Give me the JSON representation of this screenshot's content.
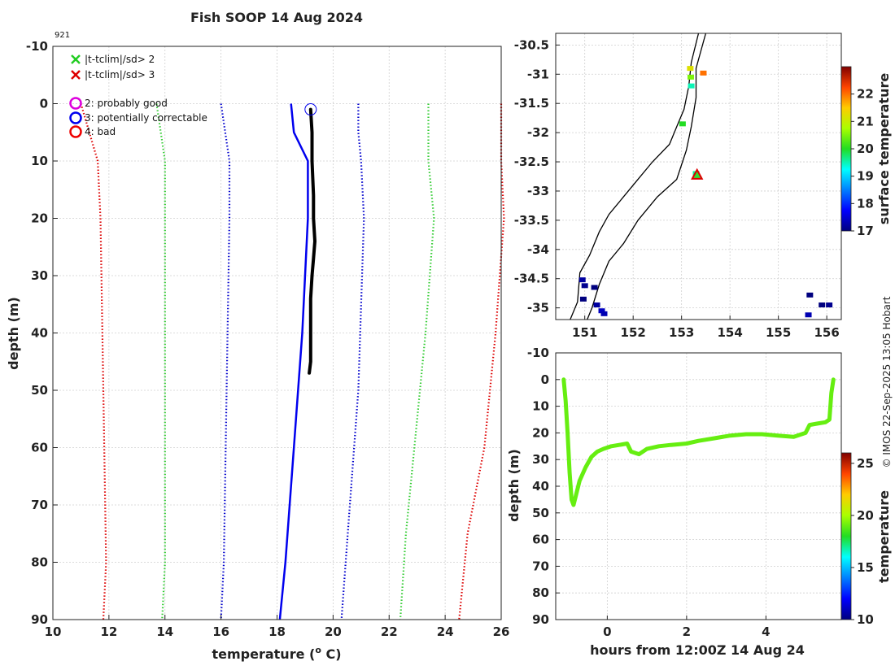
{
  "chart_data": [
    {
      "type": "line",
      "title": "Fish SOOP 14 Aug 2024",
      "profile_id": "921",
      "xlabel": "temperature (",
      "xlabel_sup": "o",
      "xlabel_tail": " C)",
      "ylabel": "depth (m)",
      "xlim": [
        10,
        26
      ],
      "ylim": [
        90,
        -10
      ],
      "xticks": [
        10,
        12,
        14,
        16,
        18,
        20,
        22,
        24,
        26
      ],
      "yticks": [
        -10,
        0,
        10,
        20,
        30,
        40,
        50,
        60,
        70,
        80,
        90
      ],
      "legend": [
        {
          "marker": "x",
          "color": "#22cc22",
          "label": "|t-tclim|/sd> 2"
        },
        {
          "marker": "x",
          "color": "#dd0000",
          "label": "|t-tclim|/sd> 3"
        },
        {
          "marker": "o",
          "color": "#dd00dd",
          "label": "2: probably good"
        },
        {
          "marker": "o",
          "color": "#0000ee",
          "label": "3: potentially correctable"
        },
        {
          "marker": "o",
          "color": "#ee0000",
          "label": "4: bad"
        }
      ],
      "legend_position": "top-left",
      "series": [
        {
          "style": "dotted",
          "color": "#dd0000",
          "points": [
            [
              11.0,
              0
            ],
            [
              11.6,
              10
            ],
            [
              11.7,
              20
            ],
            [
              11.8,
              50
            ],
            [
              11.9,
              80
            ],
            [
              11.8,
              90
            ]
          ]
        },
        {
          "style": "dotted",
          "color": "#33cc33",
          "points": [
            [
              13.7,
              0
            ],
            [
              14.0,
              10
            ],
            [
              14.0,
              20
            ],
            [
              14.0,
              50
            ],
            [
              14.0,
              80
            ],
            [
              13.9,
              90
            ]
          ]
        },
        {
          "style": "dotted",
          "color": "#0000cc",
          "points": [
            [
              16.0,
              0
            ],
            [
              16.3,
              10
            ],
            [
              16.3,
              20
            ],
            [
              16.2,
              50
            ],
            [
              16.1,
              80
            ],
            [
              16.0,
              90
            ]
          ]
        },
        {
          "style": "solid",
          "color": "#0000ee",
          "points": [
            [
              18.5,
              0
            ],
            [
              18.6,
              5
            ],
            [
              19.1,
              10
            ],
            [
              19.1,
              20
            ],
            [
              18.9,
              40
            ],
            [
              18.6,
              60
            ],
            [
              18.3,
              80
            ],
            [
              18.1,
              90
            ]
          ]
        },
        {
          "style": "dotted",
          "color": "#0000cc",
          "points": [
            [
              20.9,
              0
            ],
            [
              20.9,
              5
            ],
            [
              21.0,
              10
            ],
            [
              21.1,
              20
            ],
            [
              20.9,
              50
            ],
            [
              20.6,
              70
            ],
            [
              20.3,
              90
            ]
          ]
        },
        {
          "style": "dotted",
          "color": "#33cc33",
          "points": [
            [
              23.4,
              0
            ],
            [
              23.4,
              10
            ],
            [
              23.6,
              20
            ],
            [
              23.3,
              40
            ],
            [
              23.0,
              55
            ],
            [
              22.6,
              75
            ],
            [
              22.4,
              90
            ]
          ]
        },
        {
          "style": "dotted",
          "color": "#dd0000",
          "points": [
            [
              26.0,
              0
            ],
            [
              26.0,
              10
            ],
            [
              26.1,
              20
            ],
            [
              25.8,
              40
            ],
            [
              25.4,
              60
            ],
            [
              24.8,
              75
            ],
            [
              24.5,
              90
            ]
          ]
        },
        {
          "style": "data",
          "color": "#000000",
          "points": [
            [
              19.2,
              1
            ],
            [
              19.25,
              5
            ],
            [
              19.25,
              10
            ],
            [
              19.3,
              16
            ],
            [
              19.3,
              20
            ],
            [
              19.35,
              24
            ],
            [
              19.3,
              27
            ],
            [
              19.25,
              30
            ],
            [
              19.2,
              34
            ],
            [
              19.2,
              40
            ],
            [
              19.2,
              45
            ],
            [
              19.15,
              47
            ]
          ]
        }
      ],
      "flag_circle": {
        "x": 19.2,
        "y": 1,
        "color": "#0000ee"
      }
    },
    {
      "type": "scatter",
      "xlim": [
        150.4,
        156.3
      ],
      "ylim": [
        -35.2,
        -30.3
      ],
      "xticks": [
        151,
        152,
        153,
        154,
        155,
        156
      ],
      "yticks": [
        -30.5,
        -31,
        -31.5,
        -32,
        -32.5,
        -33,
        -33.5,
        -34,
        -34.5,
        -35
      ],
      "coast": [
        [
          153.35,
          -30.3
        ],
        [
          153.2,
          -30.8
        ],
        [
          153.15,
          -31.2
        ],
        [
          153.05,
          -31.6
        ],
        [
          152.9,
          -31.9
        ],
        [
          152.75,
          -32.2
        ],
        [
          152.4,
          -32.5
        ],
        [
          152.1,
          -32.8
        ],
        [
          151.8,
          -33.1
        ],
        [
          151.5,
          -33.4
        ],
        [
          151.3,
          -33.7
        ],
        [
          151.1,
          -34.1
        ],
        [
          150.9,
          -34.4
        ],
        [
          150.85,
          -34.9
        ],
        [
          150.7,
          -35.2
        ]
      ],
      "shelf": [
        [
          153.5,
          -30.3
        ],
        [
          153.3,
          -30.9
        ],
        [
          153.3,
          -31.4
        ],
        [
          153.2,
          -31.9
        ],
        [
          153.1,
          -32.3
        ],
        [
          152.9,
          -32.8
        ],
        [
          152.5,
          -33.1
        ],
        [
          152.1,
          -33.5
        ],
        [
          151.8,
          -33.9
        ],
        [
          151.5,
          -34.2
        ],
        [
          151.3,
          -34.6
        ],
        [
          151.15,
          -35.0
        ],
        [
          151.05,
          -35.2
        ]
      ],
      "points": [
        {
          "lon": 153.18,
          "lat": -30.9,
          "v": 21.2
        },
        {
          "lon": 153.19,
          "lat": -31.05,
          "v": 20.5
        },
        {
          "lon": 153.2,
          "lat": -31.2,
          "v": 19.5
        },
        {
          "lon": 153.45,
          "lat": -30.98,
          "v": 22.0
        },
        {
          "lon": 153.02,
          "lat": -31.85,
          "v": 20.0
        },
        {
          "lon": 153.3,
          "lat": -32.7,
          "v": 19.6
        },
        {
          "lon": 150.95,
          "lat": -34.52,
          "v": 17.2
        },
        {
          "lon": 150.97,
          "lat": -34.85,
          "v": 17.0
        },
        {
          "lon": 151.0,
          "lat": -34.62,
          "v": 17.1
        },
        {
          "lon": 151.2,
          "lat": -34.65,
          "v": 17.0
        },
        {
          "lon": 151.25,
          "lat": -34.95,
          "v": 17.2
        },
        {
          "lon": 151.35,
          "lat": -35.05,
          "v": 17.4
        },
        {
          "lon": 151.4,
          "lat": -35.1,
          "v": 17.3
        },
        {
          "lon": 155.65,
          "lat": -34.78,
          "v": 17.0
        },
        {
          "lon": 155.62,
          "lat": -35.12,
          "v": 17.3
        },
        {
          "lon": 155.9,
          "lat": -34.95,
          "v": 17.0
        },
        {
          "lon": 156.05,
          "lat": -34.95,
          "v": 17.1
        }
      ],
      "marker": {
        "lon": 153.32,
        "lat": -32.72
      },
      "colorbar": {
        "label": "surface temperature",
        "range": [
          17,
          23
        ],
        "ticks": [
          17,
          18,
          19,
          20,
          21,
          22
        ]
      }
    },
    {
      "type": "scatter",
      "xlabel": "hours from 12:00Z 14 Aug 24",
      "ylabel": "depth (m)",
      "xlim": [
        -1.3,
        5.9
      ],
      "ylim": [
        90,
        -10
      ],
      "xticks": [
        0,
        2,
        4
      ],
      "yticks": [
        -10,
        0,
        10,
        20,
        30,
        40,
        50,
        60,
        70,
        80,
        90
      ],
      "track": [
        [
          -1.1,
          0
        ],
        [
          -1.05,
          8
        ],
        [
          -1.0,
          20
        ],
        [
          -0.95,
          35
        ],
        [
          -0.9,
          45
        ],
        [
          -0.85,
          47
        ],
        [
          -0.8,
          44
        ],
        [
          -0.7,
          38
        ],
        [
          -0.55,
          33
        ],
        [
          -0.4,
          29
        ],
        [
          -0.25,
          27
        ],
        [
          -0.1,
          26
        ],
        [
          0.1,
          25
        ],
        [
          0.3,
          24.5
        ],
        [
          0.5,
          24
        ],
        [
          0.6,
          27
        ],
        [
          0.8,
          28
        ],
        [
          1.0,
          26
        ],
        [
          1.3,
          25
        ],
        [
          1.6,
          24.5
        ],
        [
          2.0,
          24
        ],
        [
          2.3,
          23
        ],
        [
          2.7,
          22
        ],
        [
          3.1,
          21
        ],
        [
          3.5,
          20.5
        ],
        [
          3.9,
          20.5
        ],
        [
          4.3,
          21
        ],
        [
          4.7,
          21.5
        ],
        [
          5.0,
          20
        ],
        [
          5.1,
          17
        ],
        [
          5.3,
          16.5
        ],
        [
          5.5,
          16
        ],
        [
          5.6,
          15
        ],
        [
          5.65,
          5
        ],
        [
          5.7,
          0
        ]
      ],
      "track_value": 19.0,
      "colorbar": {
        "label": "temperature",
        "range": [
          10,
          26
        ],
        "ticks": [
          10,
          15,
          20,
          25
        ]
      }
    }
  ],
  "footer_text": "© IMOS 22-Sep-2025 13:05 Hobart"
}
